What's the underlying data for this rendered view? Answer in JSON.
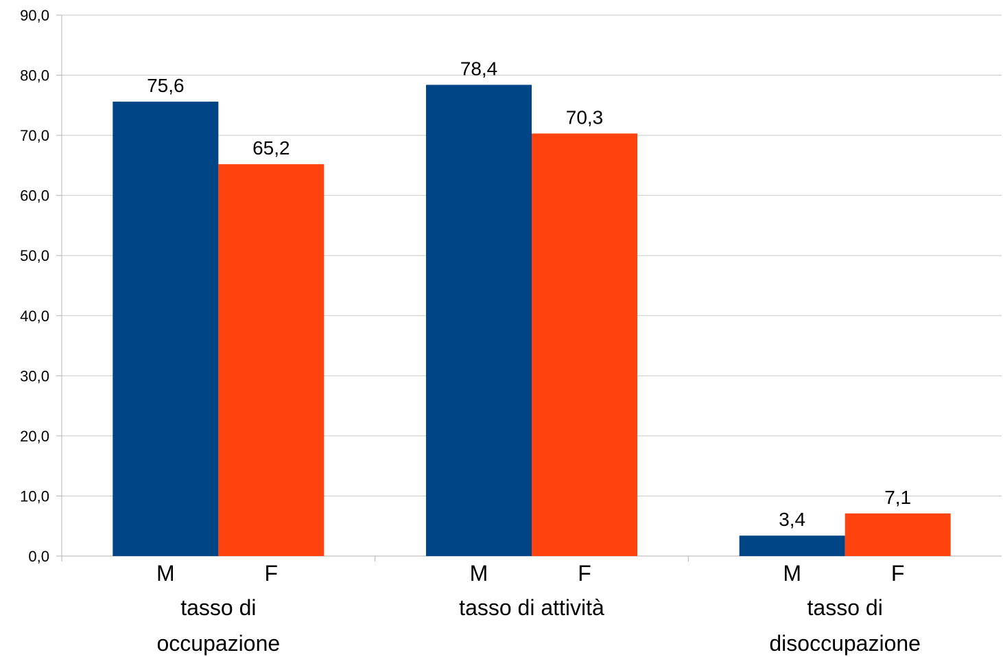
{
  "chart_data": {
    "type": "bar",
    "title": "",
    "xlabel": "",
    "ylabel": "",
    "ylim": [
      0,
      90
    ],
    "yticks": [
      "0,0",
      "10,0",
      "20,0",
      "30,0",
      "40,0",
      "50,0",
      "60,0",
      "70,0",
      "80,0",
      "90,0"
    ],
    "grid": true,
    "legend": "none",
    "categories": [
      {
        "name": "tasso di occupazione",
        "label_lines": [
          "tasso di",
          "occupazione"
        ]
      },
      {
        "name": "tasso di attività",
        "label_lines": [
          "tasso di attività"
        ]
      },
      {
        "name": "tasso di disoccupazione",
        "label_lines": [
          "tasso di",
          "disoccupazione"
        ]
      }
    ],
    "series": [
      {
        "name": "M",
        "color": "#004586",
        "values": [
          75.6,
          78.4,
          3.4
        ],
        "labels": [
          "75,6",
          "78,4",
          "3,4"
        ]
      },
      {
        "name": "F",
        "color": "#ff420e",
        "values": [
          65.2,
          70.3,
          7.1
        ],
        "labels": [
          "65,2",
          "70,3",
          "7,1"
        ]
      }
    ]
  }
}
